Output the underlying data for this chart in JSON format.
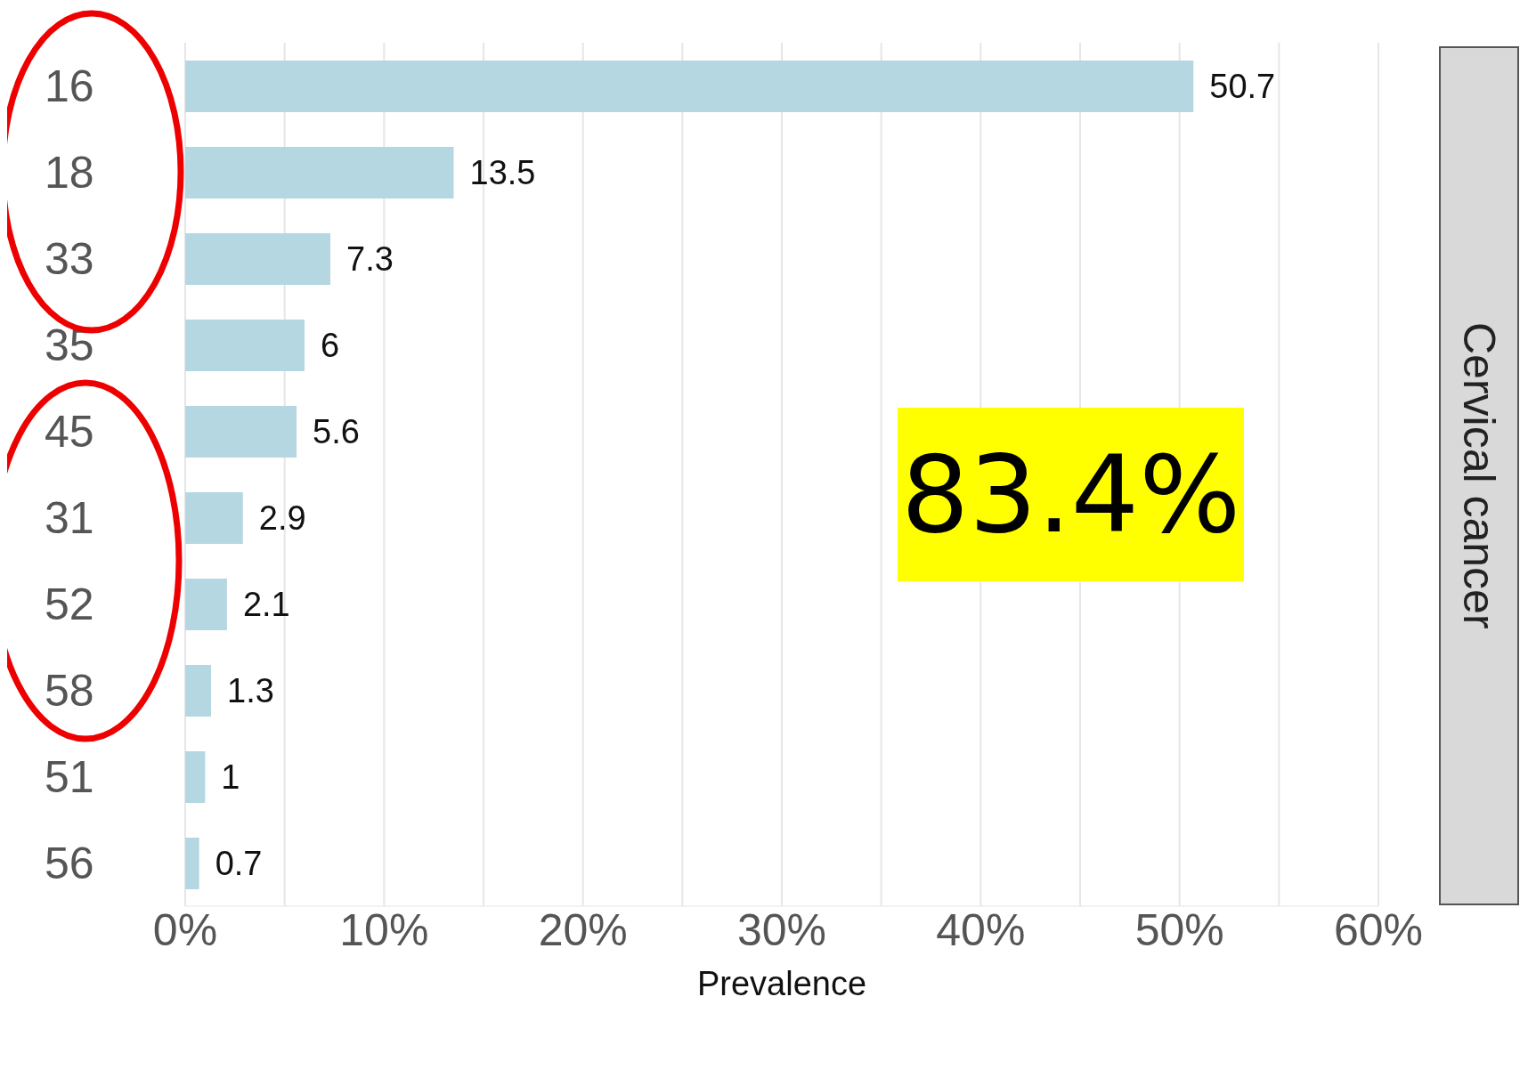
{
  "chart_data": {
    "type": "bar",
    "orientation": "horizontal",
    "xlabel": "Prevalence",
    "categories": [
      "16",
      "18",
      "33",
      "35",
      "45",
      "31",
      "52",
      "58",
      "51",
      "56"
    ],
    "values": [
      50.7,
      13.5,
      7.3,
      6,
      5.6,
      2.9,
      2.1,
      1.3,
      1,
      0.7
    ],
    "color": "#b5d7e2",
    "data_labels": true,
    "grid": "x",
    "xlim": [
      0,
      60
    ],
    "xticks": [
      {
        "value": 0,
        "label": "0%"
      },
      {
        "value": 5,
        "label": null
      },
      {
        "value": 10,
        "label": "10%"
      },
      {
        "value": 15,
        "label": null
      },
      {
        "value": 20,
        "label": "20%"
      },
      {
        "value": 25,
        "label": null
      },
      {
        "value": 30,
        "label": "30%"
      },
      {
        "value": 35,
        "label": null
      },
      {
        "value": 40,
        "label": "40%"
      },
      {
        "value": 45,
        "label": null
      },
      {
        "value": 50,
        "label": "50%"
      },
      {
        "value": 55,
        "label": null
      },
      {
        "value": 60,
        "label": "60%"
      }
    ],
    "annotations": [
      "83.4%",
      "Cervical cancer"
    ]
  }
}
